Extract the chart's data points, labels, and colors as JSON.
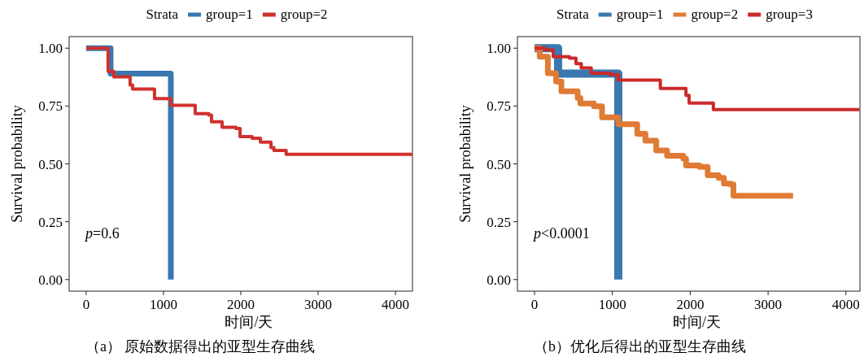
{
  "chart_data": [
    {
      "type": "step",
      "title": "（a） 原始数据得出的亚型生存曲线",
      "xlabel": "时间/天",
      "ylabel": "Survival probability",
      "legend_title": "Strata",
      "legend": "top",
      "grid": false,
      "xlim": [
        -220,
        4220
      ],
      "ylim": [
        -0.05,
        1.05
      ],
      "xticks": [
        0,
        1000,
        2000,
        3000,
        4000
      ],
      "yticks": [
        {
          "value": 0,
          "label": "0.00"
        },
        {
          "value": 0.25,
          "label": "0.25"
        },
        {
          "value": 0.5,
          "label": "0.50"
        },
        {
          "value": 0.75,
          "label": "0.75"
        },
        {
          "value": 1,
          "label": "1.00"
        }
      ],
      "annotations": [
        "p=0.6"
      ],
      "series": [
        {
          "name": "group=1",
          "color": "#3a78b0",
          "x": [
            0,
            316,
            1095,
            1095
          ],
          "values": [
            1.0,
            0.89,
            0.89,
            0.0
          ]
        },
        {
          "name": "group=2",
          "color": "#d0312d",
          "x": [
            0,
            284,
            358,
            568,
            600,
            884,
            1095,
            1410,
            1586,
            1621,
            1758,
            1937,
            1990,
            2147,
            2253,
            2390,
            2428,
            2586,
            4217
          ],
          "values": [
            1.0,
            0.9,
            0.876,
            0.841,
            0.823,
            0.782,
            0.753,
            0.717,
            0.711,
            0.682,
            0.658,
            0.653,
            0.618,
            0.611,
            0.594,
            0.57,
            0.558,
            0.541,
            0.541
          ]
        }
      ]
    },
    {
      "type": "step",
      "title": "（b）优化后得出的亚型生存曲线",
      "xlabel": "时间/天",
      "ylabel": "Survival probability",
      "legend_title": "Strata",
      "legend": "top",
      "grid": false,
      "xlim": [
        -220,
        4180
      ],
      "ylim": [
        -0.05,
        1.05
      ],
      "xticks": [
        0,
        1000,
        2000,
        3000,
        4000
      ],
      "yticks": [
        {
          "value": 0,
          "label": "0.00"
        },
        {
          "value": 0.25,
          "label": "0.25"
        },
        {
          "value": 0.5,
          "label": "0.50"
        },
        {
          "value": 0.75,
          "label": "0.75"
        },
        {
          "value": 1,
          "label": "1.00"
        }
      ],
      "annotations": [
        "p<0.0001"
      ],
      "series": [
        {
          "name": "group=1",
          "color": "#3a78b0",
          "x": [
            0,
            303,
            1076,
            1076
          ],
          "values": [
            1.0,
            0.89,
            0.89,
            0.0
          ]
        },
        {
          "name": "group=2",
          "color": "#e07b35",
          "x": [
            0,
            66,
            171,
            276,
            345,
            554,
            589,
            762,
            867,
            1076,
            1319,
            1424,
            1563,
            1702,
            1911,
            1946,
            2120,
            2225,
            2364,
            2433,
            2517,
            2555,
            3321
          ],
          "values": [
            1.0,
            0.963,
            0.892,
            0.856,
            0.814,
            0.785,
            0.761,
            0.749,
            0.701,
            0.671,
            0.63,
            0.6,
            0.558,
            0.535,
            0.523,
            0.493,
            0.487,
            0.451,
            0.439,
            0.415,
            0.411,
            0.362,
            0.362
          ]
        },
        {
          "name": "group=3",
          "color": "#cc2a2a",
          "x": [
            0,
            136,
            240,
            449,
            532,
            600,
            728,
            971,
            1076,
            1616,
            1945,
            1985,
            2297,
            4174
          ],
          "values": [
            1.0,
            0.993,
            0.963,
            0.957,
            0.933,
            0.915,
            0.892,
            0.886,
            0.862,
            0.826,
            0.796,
            0.763,
            0.735,
            0.735
          ]
        }
      ]
    }
  ]
}
